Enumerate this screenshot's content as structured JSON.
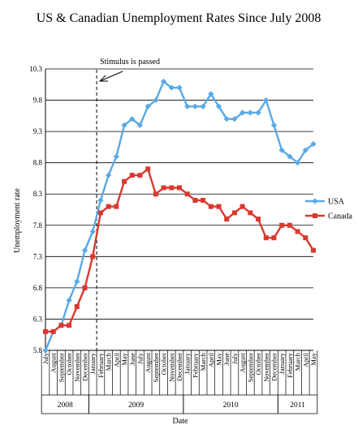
{
  "chart_data": {
    "type": "line",
    "title": "US & Canadian Unemployment Rates Since July 2008",
    "xlabel": "Date",
    "ylabel": "Unemployment rate",
    "ylim": [
      5.8,
      10.3
    ],
    "yticks": [
      "5.8",
      "6.3",
      "6.8",
      "7.3",
      "7.8",
      "8.3",
      "8.8",
      "9.3",
      "9.8",
      "10.3"
    ],
    "grid": "horizontal",
    "legend": "right",
    "categories": [
      "July",
      "August",
      "September",
      "October",
      "November",
      "December",
      "January",
      "February",
      "March",
      "April",
      "May",
      "June",
      "July",
      "August",
      "September",
      "October",
      "November",
      "December",
      "January",
      "February",
      "March",
      "April",
      "May",
      "June",
      "July",
      "August",
      "September",
      "October",
      "November",
      "December",
      "January",
      "February",
      "March",
      "April",
      "May"
    ],
    "years": [
      {
        "label": "2008",
        "start": 0,
        "end": 5
      },
      {
        "label": "2009",
        "start": 6,
        "end": 17
      },
      {
        "label": "2010",
        "start": 18,
        "end": 29
      },
      {
        "label": "2011",
        "start": 30,
        "end": 34
      }
    ],
    "series": [
      {
        "name": "USA",
        "color": "#5aa9e6",
        "marker": "diamond",
        "values": [
          5.8,
          6.1,
          6.2,
          6.6,
          6.9,
          7.4,
          7.7,
          8.2,
          8.6,
          8.9,
          9.4,
          9.5,
          9.4,
          9.7,
          9.8,
          10.1,
          10.0,
          10.0,
          9.7,
          9.7,
          9.7,
          9.9,
          9.7,
          9.5,
          9.5,
          9.6,
          9.6,
          9.6,
          9.8,
          9.4,
          9.0,
          8.9,
          8.8,
          9.0,
          9.1
        ]
      },
      {
        "name": "Canada",
        "color": "#d9392e",
        "marker": "square",
        "values": [
          6.1,
          6.1,
          6.2,
          6.2,
          6.5,
          6.8,
          7.3,
          8.0,
          8.1,
          8.1,
          8.5,
          8.6,
          8.6,
          8.7,
          8.3,
          8.4,
          8.4,
          8.4,
          8.3,
          8.2,
          8.2,
          8.1,
          8.1,
          7.9,
          8.0,
          8.1,
          8.0,
          7.9,
          7.6,
          7.6,
          7.8,
          7.8,
          7.7,
          7.6,
          7.4
        ]
      }
    ],
    "annotations": [
      {
        "text": "Stimulus is passed",
        "at_category_boundary": 7
      }
    ]
  }
}
